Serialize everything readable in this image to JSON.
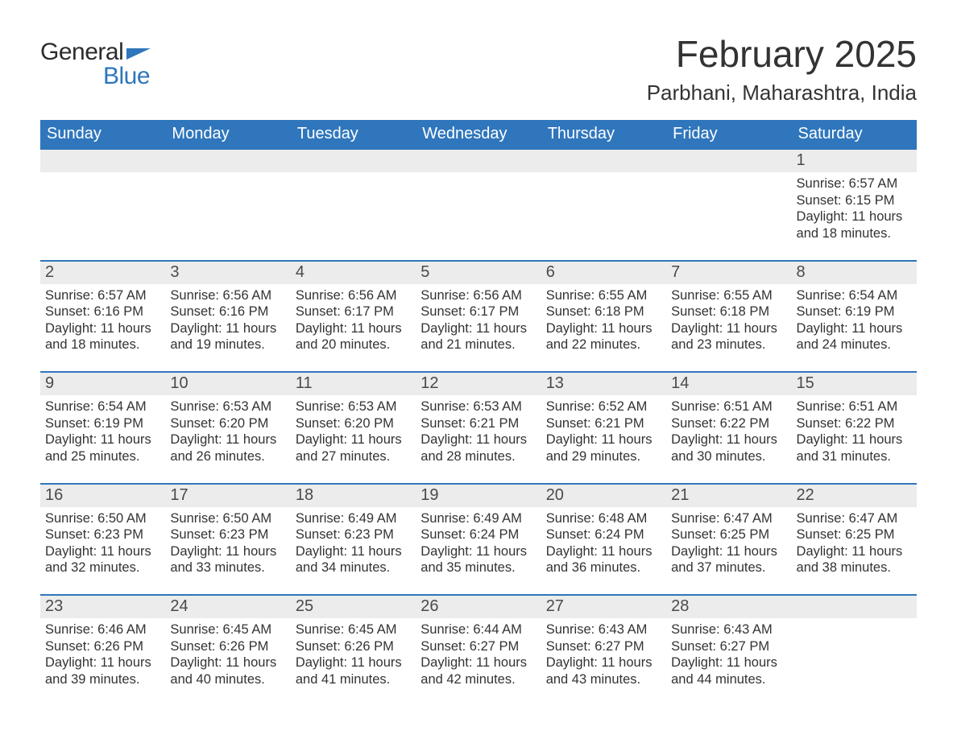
{
  "brand": {
    "word1": "General",
    "word2": "Blue",
    "text_color": "#2c2c2c",
    "accent_color": "#2f76bc"
  },
  "title": {
    "month_year": "February 2025",
    "location": "Parbhani, Maharashtra, India"
  },
  "style": {
    "header_bg": "#2f76bc",
    "header_text": "#ffffff",
    "row_border_color": "#2f76bc",
    "daynum_bg": "#ececec",
    "daynum_color": "#4a4a4a",
    "body_text_color": "#333333",
    "page_bg": "#ffffff",
    "title_fontsize": 46,
    "location_fontsize": 26,
    "dayheader_fontsize": 20,
    "daynum_fontsize": 20,
    "content_fontsize": 16.5
  },
  "day_names": [
    "Sunday",
    "Monday",
    "Tuesday",
    "Wednesday",
    "Thursday",
    "Friday",
    "Saturday"
  ],
  "weeks": [
    [
      null,
      null,
      null,
      null,
      null,
      null,
      {
        "day": "1",
        "sunrise": "Sunrise: 6:57 AM",
        "sunset": "Sunset: 6:15 PM",
        "daylight": "Daylight: 11 hours and 18 minutes."
      }
    ],
    [
      {
        "day": "2",
        "sunrise": "Sunrise: 6:57 AM",
        "sunset": "Sunset: 6:16 PM",
        "daylight": "Daylight: 11 hours and 18 minutes."
      },
      {
        "day": "3",
        "sunrise": "Sunrise: 6:56 AM",
        "sunset": "Sunset: 6:16 PM",
        "daylight": "Daylight: 11 hours and 19 minutes."
      },
      {
        "day": "4",
        "sunrise": "Sunrise: 6:56 AM",
        "sunset": "Sunset: 6:17 PM",
        "daylight": "Daylight: 11 hours and 20 minutes."
      },
      {
        "day": "5",
        "sunrise": "Sunrise: 6:56 AM",
        "sunset": "Sunset: 6:17 PM",
        "daylight": "Daylight: 11 hours and 21 minutes."
      },
      {
        "day": "6",
        "sunrise": "Sunrise: 6:55 AM",
        "sunset": "Sunset: 6:18 PM",
        "daylight": "Daylight: 11 hours and 22 minutes."
      },
      {
        "day": "7",
        "sunrise": "Sunrise: 6:55 AM",
        "sunset": "Sunset: 6:18 PM",
        "daylight": "Daylight: 11 hours and 23 minutes."
      },
      {
        "day": "8",
        "sunrise": "Sunrise: 6:54 AM",
        "sunset": "Sunset: 6:19 PM",
        "daylight": "Daylight: 11 hours and 24 minutes."
      }
    ],
    [
      {
        "day": "9",
        "sunrise": "Sunrise: 6:54 AM",
        "sunset": "Sunset: 6:19 PM",
        "daylight": "Daylight: 11 hours and 25 minutes."
      },
      {
        "day": "10",
        "sunrise": "Sunrise: 6:53 AM",
        "sunset": "Sunset: 6:20 PM",
        "daylight": "Daylight: 11 hours and 26 minutes."
      },
      {
        "day": "11",
        "sunrise": "Sunrise: 6:53 AM",
        "sunset": "Sunset: 6:20 PM",
        "daylight": "Daylight: 11 hours and 27 minutes."
      },
      {
        "day": "12",
        "sunrise": "Sunrise: 6:53 AM",
        "sunset": "Sunset: 6:21 PM",
        "daylight": "Daylight: 11 hours and 28 minutes."
      },
      {
        "day": "13",
        "sunrise": "Sunrise: 6:52 AM",
        "sunset": "Sunset: 6:21 PM",
        "daylight": "Daylight: 11 hours and 29 minutes."
      },
      {
        "day": "14",
        "sunrise": "Sunrise: 6:51 AM",
        "sunset": "Sunset: 6:22 PM",
        "daylight": "Daylight: 11 hours and 30 minutes."
      },
      {
        "day": "15",
        "sunrise": "Sunrise: 6:51 AM",
        "sunset": "Sunset: 6:22 PM",
        "daylight": "Daylight: 11 hours and 31 minutes."
      }
    ],
    [
      {
        "day": "16",
        "sunrise": "Sunrise: 6:50 AM",
        "sunset": "Sunset: 6:23 PM",
        "daylight": "Daylight: 11 hours and 32 minutes."
      },
      {
        "day": "17",
        "sunrise": "Sunrise: 6:50 AM",
        "sunset": "Sunset: 6:23 PM",
        "daylight": "Daylight: 11 hours and 33 minutes."
      },
      {
        "day": "18",
        "sunrise": "Sunrise: 6:49 AM",
        "sunset": "Sunset: 6:23 PM",
        "daylight": "Daylight: 11 hours and 34 minutes."
      },
      {
        "day": "19",
        "sunrise": "Sunrise: 6:49 AM",
        "sunset": "Sunset: 6:24 PM",
        "daylight": "Daylight: 11 hours and 35 minutes."
      },
      {
        "day": "20",
        "sunrise": "Sunrise: 6:48 AM",
        "sunset": "Sunset: 6:24 PM",
        "daylight": "Daylight: 11 hours and 36 minutes."
      },
      {
        "day": "21",
        "sunrise": "Sunrise: 6:47 AM",
        "sunset": "Sunset: 6:25 PM",
        "daylight": "Daylight: 11 hours and 37 minutes."
      },
      {
        "day": "22",
        "sunrise": "Sunrise: 6:47 AM",
        "sunset": "Sunset: 6:25 PM",
        "daylight": "Daylight: 11 hours and 38 minutes."
      }
    ],
    [
      {
        "day": "23",
        "sunrise": "Sunrise: 6:46 AM",
        "sunset": "Sunset: 6:26 PM",
        "daylight": "Daylight: 11 hours and 39 minutes."
      },
      {
        "day": "24",
        "sunrise": "Sunrise: 6:45 AM",
        "sunset": "Sunset: 6:26 PM",
        "daylight": "Daylight: 11 hours and 40 minutes."
      },
      {
        "day": "25",
        "sunrise": "Sunrise: 6:45 AM",
        "sunset": "Sunset: 6:26 PM",
        "daylight": "Daylight: 11 hours and 41 minutes."
      },
      {
        "day": "26",
        "sunrise": "Sunrise: 6:44 AM",
        "sunset": "Sunset: 6:27 PM",
        "daylight": "Daylight: 11 hours and 42 minutes."
      },
      {
        "day": "27",
        "sunrise": "Sunrise: 6:43 AM",
        "sunset": "Sunset: 6:27 PM",
        "daylight": "Daylight: 11 hours and 43 minutes."
      },
      {
        "day": "28",
        "sunrise": "Sunrise: 6:43 AM",
        "sunset": "Sunset: 6:27 PM",
        "daylight": "Daylight: 11 hours and 44 minutes."
      },
      null
    ]
  ]
}
